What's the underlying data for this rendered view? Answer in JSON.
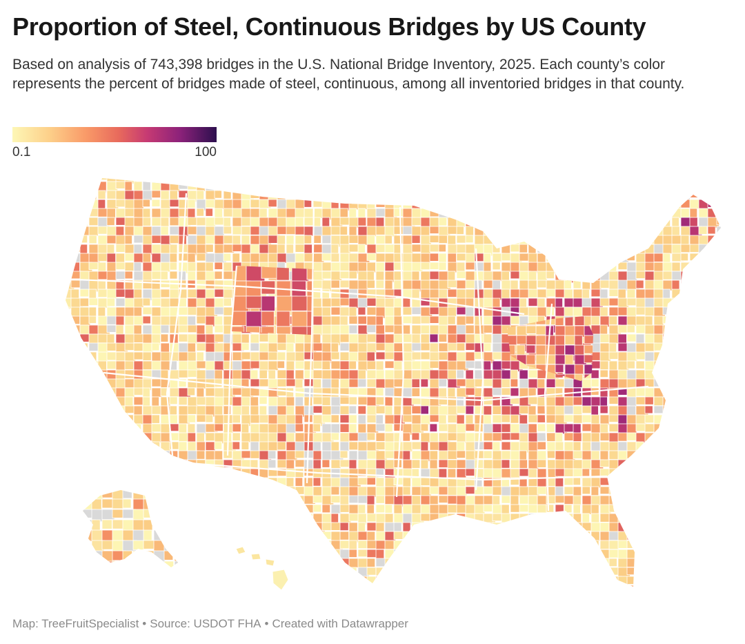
{
  "header": {
    "title": "Proportion of Steel, Continuous Bridges by US County",
    "subtitle": "Based on analysis of 743,398 bridges in the U.S. National Bridge Inventory, 2025. Each county’s color represents the percent of bridges made of steel, continuous, among all inventoried bridges in that county."
  },
  "legend": {
    "min_label": "0.1",
    "max_label": "100",
    "scale_colors": [
      "#fdf7b6",
      "#fdd08a",
      "#f99a68",
      "#e86a5c",
      "#c63a73",
      "#8c227a",
      "#2d0f4e"
    ]
  },
  "map": {
    "type": "choropleth",
    "regions": "US counties (contiguous US, Alaska, Hawaii)",
    "no_data_color": "#d9d9d9",
    "border_color": "#ffffff",
    "highlight_areas": [
      {
        "area": "Wyoming",
        "level": "high"
      },
      {
        "area": "Ohio",
        "level": "high"
      },
      {
        "area": "Illinois / St. Louis region",
        "level": "high"
      },
      {
        "area": "Maine (north)",
        "level": "medium"
      }
    ]
  },
  "footer": {
    "map_credit": "Map: TreeFruitSpecialist",
    "source": "Source: USDOT FHA",
    "tool": "Created with Datawrapper",
    "separator": "•"
  }
}
